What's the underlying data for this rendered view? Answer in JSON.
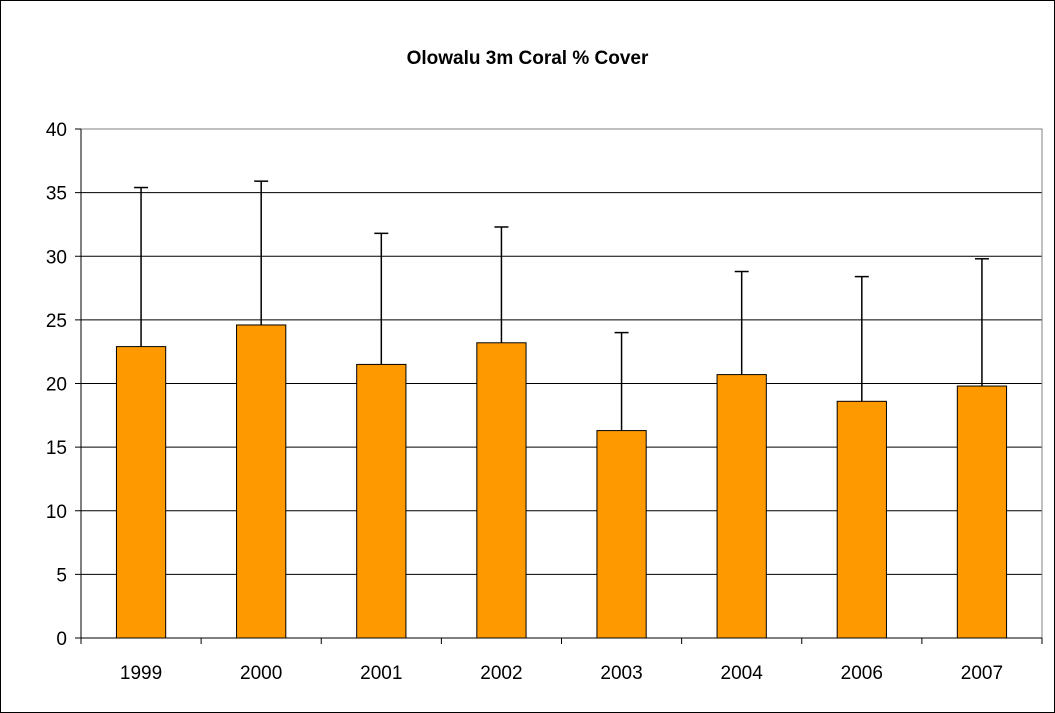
{
  "chart_data": {
    "type": "bar",
    "title": "Olowalu 3m Coral % Cover",
    "xlabel": "",
    "ylabel": "",
    "categories": [
      "1999",
      "2000",
      "2001",
      "2002",
      "2003",
      "2004",
      "2006",
      "2007"
    ],
    "values": [
      22.9,
      24.6,
      21.5,
      23.2,
      16.3,
      20.7,
      18.6,
      19.8
    ],
    "error_upper": [
      35.4,
      35.9,
      31.8,
      32.3,
      24.0,
      28.8,
      28.4,
      29.8
    ],
    "ylim": [
      0,
      40
    ],
    "yticks": [
      0,
      5,
      10,
      15,
      20,
      25,
      30,
      35,
      40
    ],
    "grid": true,
    "legend": "none",
    "bar_color": "#FF9900",
    "plot_border_color": "#808080"
  }
}
